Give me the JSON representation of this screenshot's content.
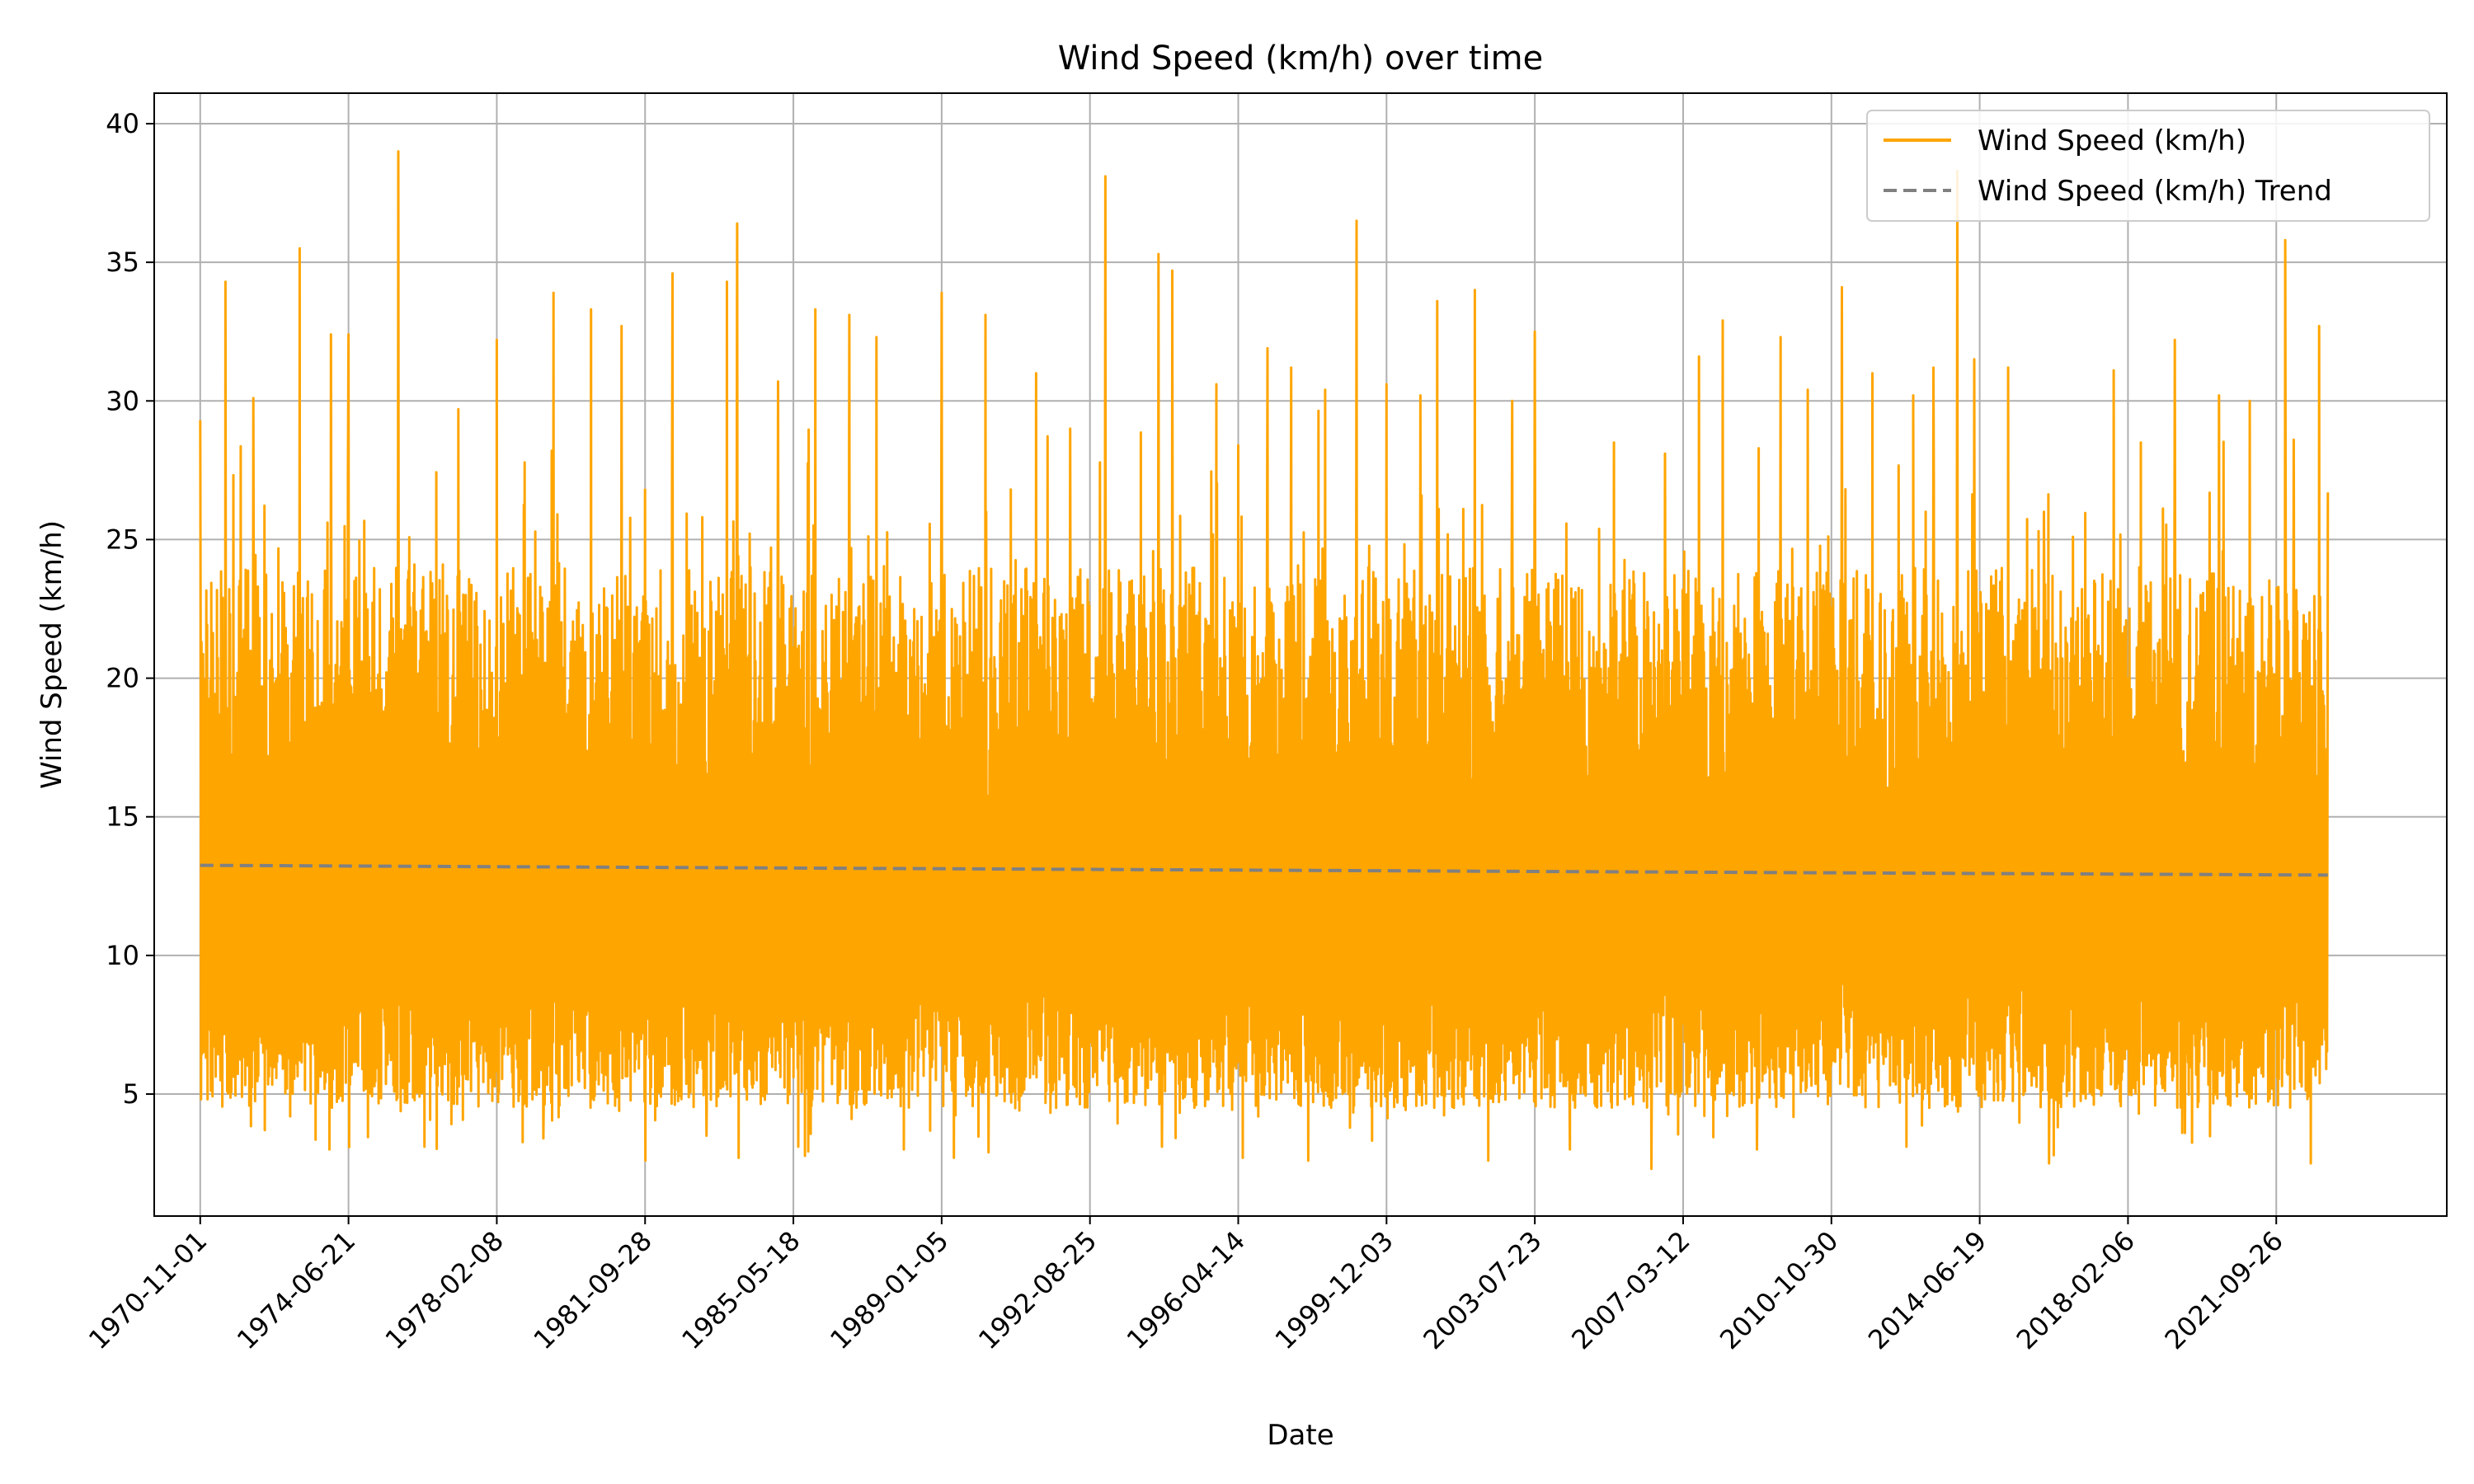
{
  "chart_data": {
    "type": "line",
    "title": "Wind Speed (km/h) over time",
    "xlabel": "Date",
    "ylabel": "Wind Speed (km/h)",
    "x_range": [
      "1969-09-15",
      "2025-12-01"
    ],
    "data_range": [
      "1970-11-01",
      "2023-01-01"
    ],
    "ylim": [
      0.6,
      41.1
    ],
    "yticks": [
      5,
      10,
      15,
      20,
      25,
      30,
      35,
      40
    ],
    "xticks": [
      "1970-11-01",
      "1974-06-21",
      "1978-02-08",
      "1981-09-28",
      "1985-05-18",
      "1989-01-05",
      "1992-08-25",
      "1996-04-14",
      "1999-12-03",
      "2003-07-23",
      "2007-03-12",
      "2010-10-30",
      "2014-06-19",
      "2018-02-06",
      "2021-09-26"
    ],
    "grid": true,
    "legend": "top-right",
    "series": [
      {
        "name": "Wind Speed (km/h)",
        "color": "#FFA500",
        "style": "solid",
        "summary": {
          "typical_low": 7,
          "typical_high": 20,
          "min": 2.3,
          "max": 39.0
        },
        "peaks": [
          [
            "1970-11-01",
            29.3
          ],
          [
            "1971-06-15",
            34.3
          ],
          [
            "1972-02-20",
            30.1
          ],
          [
            "1973-04-10",
            35.5
          ],
          [
            "1974-01-15",
            32.4
          ],
          [
            "1974-06-21",
            32.4
          ],
          [
            "1975-09-10",
            39.0
          ],
          [
            "1976-02-01",
            24.1
          ],
          [
            "1977-03-01",
            29.7
          ],
          [
            "1978-02-08",
            32.2
          ],
          [
            "1979-07-01",
            33.9
          ],
          [
            "1980-06-01",
            33.3
          ],
          [
            "1981-03-01",
            32.7
          ],
          [
            "1981-09-28",
            26.8
          ],
          [
            "1982-06-01",
            34.6
          ],
          [
            "1983-10-01",
            34.3
          ],
          [
            "1984-01-01",
            36.4
          ],
          [
            "1985-01-01",
            30.7
          ],
          [
            "1985-12-01",
            33.3
          ],
          [
            "1986-10-01",
            33.1
          ],
          [
            "1987-06-01",
            32.3
          ],
          [
            "1988-02-01",
            33.5
          ],
          [
            "1989-01-05",
            33.9
          ],
          [
            "1990-02-01",
            33.1
          ],
          [
            "1991-05-01",
            31.0
          ],
          [
            "1992-03-01",
            29.0
          ],
          [
            "1993-01-10",
            38.1
          ],
          [
            "1994-05-01",
            35.3
          ],
          [
            "1994-09-01",
            34.7
          ],
          [
            "1995-10-01",
            30.6
          ],
          [
            "1996-04-14",
            28.4
          ],
          [
            "1997-01-01",
            31.9
          ],
          [
            "1997-08-01",
            31.2
          ],
          [
            "1998-06-01",
            30.4
          ],
          [
            "1999-03-10",
            36.5
          ],
          [
            "1999-12-03",
            30.6
          ],
          [
            "2000-10-01",
            30.2
          ],
          [
            "2001-03-01",
            33.6
          ],
          [
            "2002-02-01",
            34.0
          ],
          [
            "2003-01-01",
            30.0
          ],
          [
            "2003-07-23",
            32.5
          ],
          [
            "2004-06-01",
            28.0
          ],
          [
            "2005-07-01",
            28.5
          ],
          [
            "2006-10-01",
            28.1
          ],
          [
            "2007-08-01",
            31.6
          ],
          [
            "2008-03-01",
            32.9
          ],
          [
            "2009-08-01",
            32.3
          ],
          [
            "2010-04-01",
            30.4
          ],
          [
            "2011-02-01",
            34.1
          ],
          [
            "2011-11-01",
            31.0
          ],
          [
            "2012-11-01",
            30.2
          ],
          [
            "2013-05-01",
            31.2
          ],
          [
            "2013-12-01",
            38.3
          ],
          [
            "2014-05-01",
            31.5
          ],
          [
            "2015-03-01",
            31.2
          ],
          [
            "2016-01-15",
            26.0
          ],
          [
            "2017-10-01",
            31.1
          ],
          [
            "2018-06-01",
            28.5
          ],
          [
            "2019-04-01",
            32.2
          ],
          [
            "2020-05-01",
            30.2
          ],
          [
            "2021-02-01",
            30.0
          ],
          [
            "2021-12-15",
            35.8
          ],
          [
            "2022-03-01",
            28.6
          ],
          [
            "2022-10-15",
            32.7
          ],
          [
            "2023-01-01",
            26.7
          ]
        ],
        "troughs": [
          [
            "1971-05-01",
            5.5
          ],
          [
            "1972-06-01",
            3.7
          ],
          [
            "1974-01-01",
            3.0
          ],
          [
            "1976-05-01",
            3.1
          ],
          [
            "1979-04-01",
            3.4
          ],
          [
            "1981-10-01",
            2.6
          ],
          [
            "1983-04-01",
            3.5
          ],
          [
            "1985-07-01",
            3.1
          ],
          [
            "1988-02-01",
            3.0
          ],
          [
            "1990-03-01",
            2.9
          ],
          [
            "1994-06-01",
            3.1
          ],
          [
            "1998-01-01",
            2.6
          ],
          [
            "2002-06-01",
            2.6
          ],
          [
            "2004-06-01",
            3.0
          ],
          [
            "2006-06-01",
            2.3
          ],
          [
            "2009-01-01",
            3.0
          ],
          [
            "2012-09-01",
            3.1
          ],
          [
            "2016-03-01",
            2.5
          ],
          [
            "2019-07-01",
            3.6
          ],
          [
            "2022-08-01",
            2.5
          ]
        ]
      },
      {
        "name": "Wind Speed (km/h) Trend",
        "color": "#808080",
        "style": "dashed",
        "points": [
          [
            "1970-11-01",
            13.25
          ],
          [
            "2023-01-01",
            12.9
          ]
        ]
      }
    ]
  }
}
